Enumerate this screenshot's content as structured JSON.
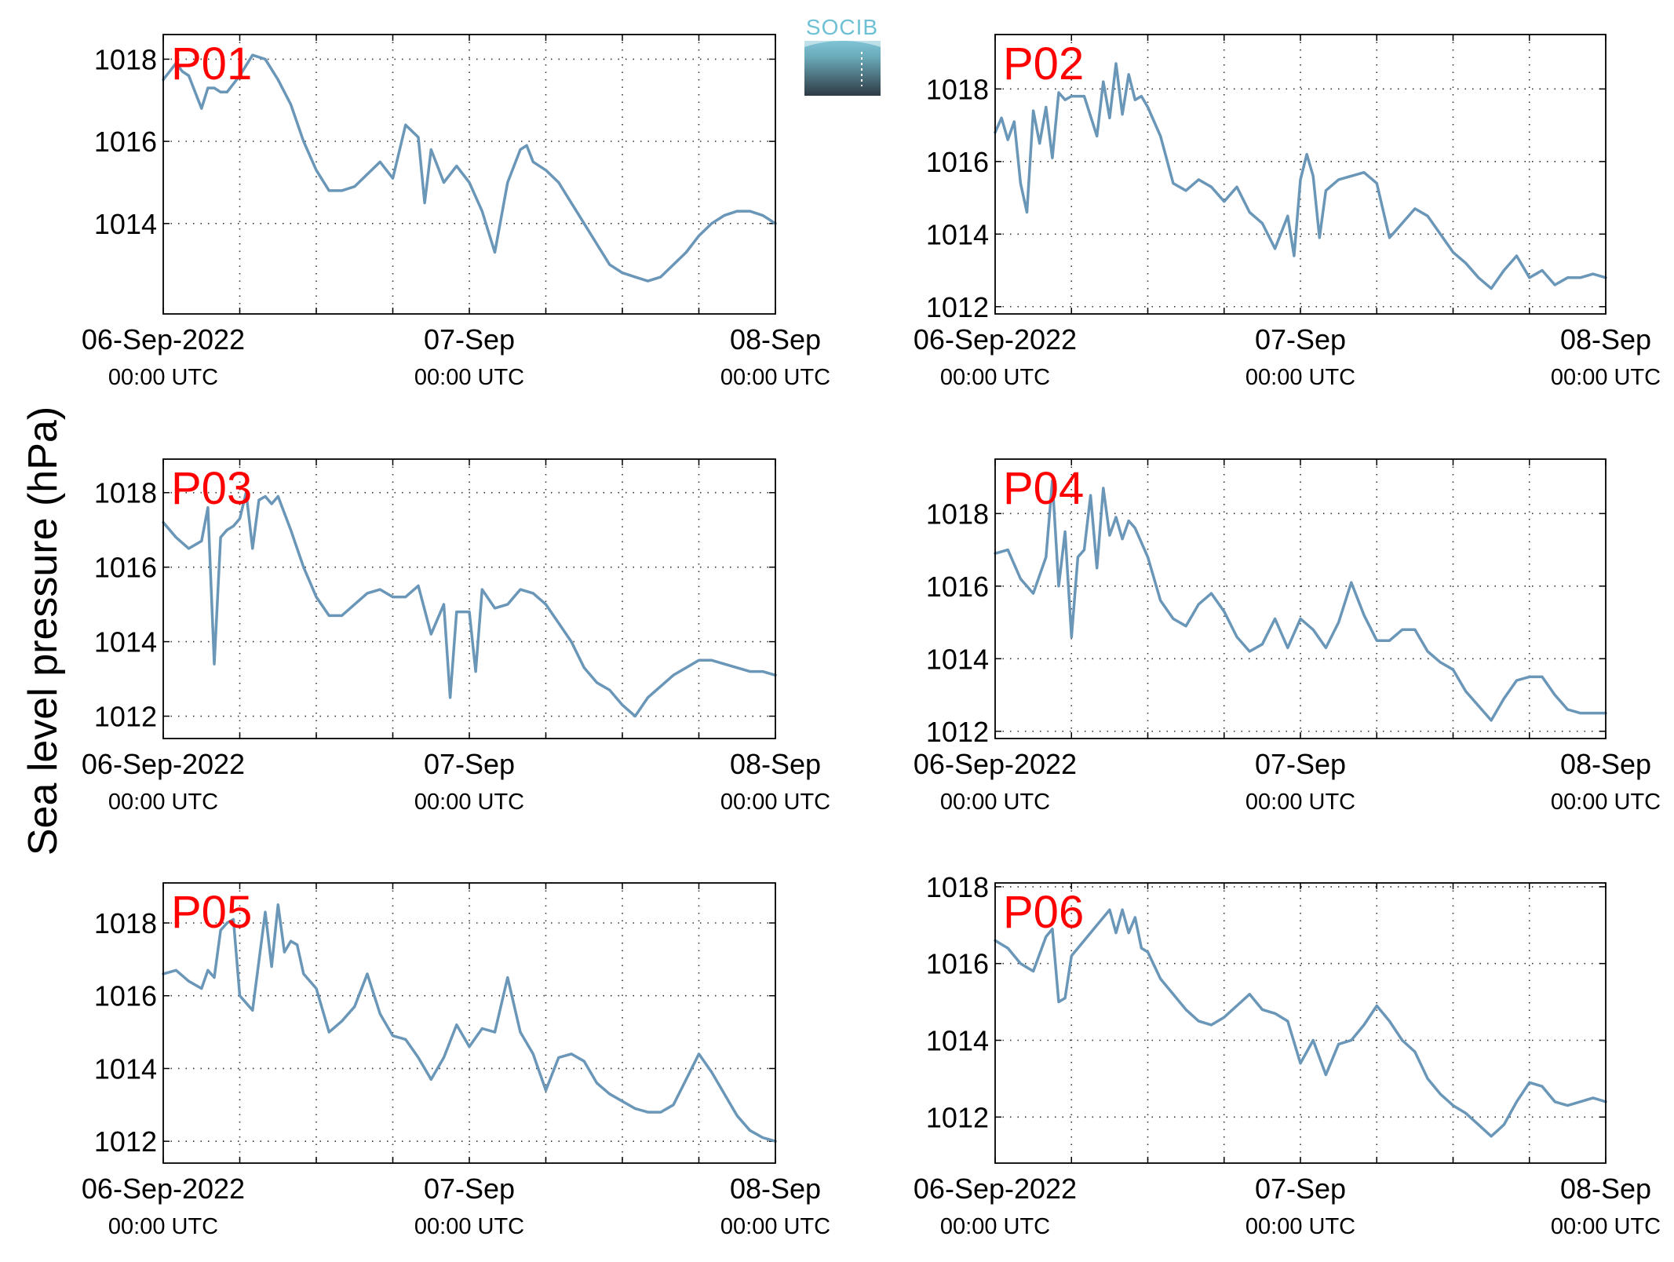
{
  "figure": {
    "ylabel": "Sea level pressure (hPa)",
    "logo_text": "SOCIB",
    "label_color": "#ff0000",
    "line_color": "#6a96b8"
  },
  "chart_data": [
    {
      "type": "line",
      "label": "P01",
      "x_tick_labels": [
        "06-Sep-2022",
        "07-Sep",
        "08-Sep"
      ],
      "x_tick_sublabels": [
        "00:00 UTC",
        "00:00 UTC",
        "00:00 UTC"
      ],
      "xlim_hours": [
        0,
        48
      ],
      "ylim": [
        1011.8,
        1018.6
      ],
      "yticks": [
        1014,
        1016,
        1018
      ],
      "grid": true,
      "series": [
        {
          "x": [
            0,
            1,
            1.5,
            2,
            2.5,
            3,
            3.5,
            4,
            4.5,
            5,
            6,
            7,
            8,
            9,
            10,
            11,
            12,
            13,
            14,
            15,
            16,
            17,
            18,
            19,
            20,
            20.5,
            21,
            21.5,
            22,
            23,
            24,
            25,
            26,
            27,
            28,
            28.5,
            29,
            30,
            31,
            32,
            33,
            34,
            35,
            36,
            37,
            38,
            39,
            40,
            41,
            42,
            43,
            44,
            45,
            46,
            47,
            48
          ],
          "y": [
            1017.5,
            1017.9,
            1017.7,
            1017.6,
            1017.2,
            1016.8,
            1017.3,
            1017.3,
            1017.2,
            1017.2,
            1017.6,
            1018.1,
            1018.0,
            1017.5,
            1016.9,
            1016.0,
            1015.3,
            1014.8,
            1014.8,
            1014.9,
            1015.2,
            1015.5,
            1015.1,
            1016.4,
            1016.1,
            1014.5,
            1015.8,
            1015.4,
            1015.0,
            1015.4,
            1015.0,
            1014.3,
            1013.3,
            1015.0,
            1015.8,
            1015.9,
            1015.5,
            1015.3,
            1015.0,
            1014.5,
            1014.0,
            1013.5,
            1013.0,
            1012.8,
            1012.7,
            1012.6,
            1012.7,
            1013.0,
            1013.3,
            1013.7,
            1014.0,
            1014.2,
            1014.3,
            1014.3,
            1014.2,
            1014.0
          ]
        }
      ]
    },
    {
      "type": "line",
      "label": "P02",
      "x_tick_labels": [
        "06-Sep-2022",
        "07-Sep",
        "08-Sep"
      ],
      "x_tick_sublabels": [
        "00:00 UTC",
        "00:00 UTC",
        "00:00 UTC"
      ],
      "xlim_hours": [
        0,
        48
      ],
      "ylim": [
        1011.8,
        1019.5
      ],
      "yticks": [
        1012,
        1014,
        1016,
        1018
      ],
      "grid": true,
      "series": [
        {
          "x": [
            0,
            0.5,
            1,
            1.5,
            2,
            2.5,
            3,
            3.5,
            4,
            4.5,
            5,
            5.5,
            6,
            7,
            8,
            8.5,
            9,
            9.5,
            10,
            10.5,
            11,
            11.5,
            12,
            13,
            14,
            15,
            16,
            17,
            18,
            19,
            20,
            21,
            22,
            23,
            23.5,
            24,
            24.5,
            25,
            25.5,
            26,
            27,
            28,
            29,
            30,
            31,
            32,
            33,
            34,
            35,
            36,
            37,
            38,
            39,
            40,
            41,
            42,
            43,
            44,
            45,
            46,
            47,
            48
          ],
          "y": [
            1016.8,
            1017.2,
            1016.6,
            1017.1,
            1015.4,
            1014.6,
            1017.4,
            1016.5,
            1017.5,
            1016.1,
            1017.9,
            1017.7,
            1017.8,
            1017.8,
            1016.7,
            1018.2,
            1017.2,
            1018.7,
            1017.3,
            1018.4,
            1017.7,
            1017.8,
            1017.5,
            1016.7,
            1015.4,
            1015.2,
            1015.5,
            1015.3,
            1014.9,
            1015.3,
            1014.6,
            1014.3,
            1013.6,
            1014.5,
            1013.4,
            1015.5,
            1016.2,
            1015.6,
            1013.9,
            1015.2,
            1015.5,
            1015.6,
            1015.7,
            1015.4,
            1013.9,
            1014.3,
            1014.7,
            1014.5,
            1014.0,
            1013.5,
            1013.2,
            1012.8,
            1012.5,
            1013.0,
            1013.4,
            1012.8,
            1013.0,
            1012.6,
            1012.8,
            1012.8,
            1012.9,
            1012.8
          ]
        }
      ]
    },
    {
      "type": "line",
      "label": "P03",
      "x_tick_labels": [
        "06-Sep-2022",
        "07-Sep",
        "08-Sep"
      ],
      "x_tick_sublabels": [
        "00:00 UTC",
        "00:00 UTC",
        "00:00 UTC"
      ],
      "xlim_hours": [
        0,
        48
      ],
      "ylim": [
        1011.4,
        1018.9
      ],
      "yticks": [
        1012,
        1014,
        1016,
        1018
      ],
      "grid": true,
      "series": [
        {
          "x": [
            0,
            1,
            2,
            3,
            3.5,
            4,
            4.5,
            5,
            5.5,
            6,
            6.5,
            7,
            7.5,
            8,
            8.5,
            9,
            10,
            11,
            12,
            13,
            14,
            15,
            16,
            17,
            18,
            19,
            20,
            21,
            22,
            22.5,
            23,
            24,
            24.5,
            25,
            26,
            27,
            28,
            29,
            30,
            31,
            32,
            33,
            34,
            35,
            36,
            37,
            38,
            39,
            40,
            41,
            42,
            43,
            44,
            45,
            46,
            47,
            48
          ],
          "y": [
            1017.2,
            1016.8,
            1016.5,
            1016.7,
            1017.6,
            1013.4,
            1016.8,
            1017.0,
            1017.1,
            1017.3,
            1018.0,
            1016.5,
            1017.8,
            1017.9,
            1017.7,
            1017.9,
            1017.0,
            1016.0,
            1015.2,
            1014.7,
            1014.7,
            1015.0,
            1015.3,
            1015.4,
            1015.2,
            1015.2,
            1015.5,
            1014.2,
            1015.0,
            1012.5,
            1014.8,
            1014.8,
            1013.2,
            1015.4,
            1014.9,
            1015.0,
            1015.4,
            1015.3,
            1015.0,
            1014.5,
            1014.0,
            1013.3,
            1012.9,
            1012.7,
            1012.3,
            1012.0,
            1012.5,
            1012.8,
            1013.1,
            1013.3,
            1013.5,
            1013.5,
            1013.4,
            1013.3,
            1013.2,
            1013.2,
            1013.1
          ]
        }
      ]
    },
    {
      "type": "line",
      "label": "P04",
      "x_tick_labels": [
        "06-Sep-2022",
        "07-Sep",
        "08-Sep"
      ],
      "x_tick_sublabels": [
        "00:00 UTC",
        "00:00 UTC",
        "00:00 UTC"
      ],
      "xlim_hours": [
        0,
        48
      ],
      "ylim": [
        1011.8,
        1019.5
      ],
      "yticks": [
        1012,
        1014,
        1016,
        1018
      ],
      "grid": true,
      "series": [
        {
          "x": [
            0,
            1,
            2,
            3,
            4,
            4.5,
            5,
            5.5,
            6,
            6.5,
            7,
            7.5,
            8,
            8.5,
            9,
            9.5,
            10,
            10.5,
            11,
            12,
            13,
            14,
            15,
            16,
            17,
            18,
            19,
            20,
            21,
            22,
            23,
            24,
            25,
            26,
            27,
            28,
            29,
            30,
            31,
            32,
            33,
            34,
            35,
            36,
            37,
            38,
            39,
            40,
            41,
            42,
            43,
            44,
            45,
            46,
            47,
            48
          ],
          "y": [
            1016.9,
            1017.0,
            1016.2,
            1015.8,
            1016.8,
            1018.9,
            1016.0,
            1017.5,
            1014.6,
            1016.8,
            1017.0,
            1018.5,
            1016.5,
            1018.7,
            1017.4,
            1017.9,
            1017.3,
            1017.8,
            1017.6,
            1016.8,
            1015.6,
            1015.1,
            1014.9,
            1015.5,
            1015.8,
            1015.3,
            1014.6,
            1014.2,
            1014.4,
            1015.1,
            1014.3,
            1015.1,
            1014.8,
            1014.3,
            1015.0,
            1016.1,
            1015.2,
            1014.5,
            1014.5,
            1014.8,
            1014.8,
            1014.2,
            1013.9,
            1013.7,
            1013.1,
            1012.7,
            1012.3,
            1012.9,
            1013.4,
            1013.5,
            1013.5,
            1013.0,
            1012.6,
            1012.5,
            1012.5,
            1012.5
          ]
        }
      ]
    },
    {
      "type": "line",
      "label": "P05",
      "x_tick_labels": [
        "06-Sep-2022",
        "07-Sep",
        "08-Sep"
      ],
      "x_tick_sublabels": [
        "00:00 UTC",
        "00:00 UTC",
        "00:00 UTC"
      ],
      "xlim_hours": [
        0,
        48
      ],
      "ylim": [
        1011.4,
        1019.1
      ],
      "yticks": [
        1012,
        1014,
        1016,
        1018
      ],
      "grid": true,
      "series": [
        {
          "x": [
            0,
            1,
            2,
            3,
            3.5,
            4,
            4.5,
            5,
            5.5,
            6,
            7,
            8,
            8.5,
            9,
            9.5,
            10,
            10.5,
            11,
            12,
            13,
            14,
            15,
            16,
            17,
            18,
            19,
            20,
            21,
            22,
            23,
            24,
            25,
            26,
            27,
            28,
            29,
            30,
            31,
            32,
            33,
            34,
            35,
            36,
            37,
            38,
            39,
            40,
            41,
            42,
            43,
            44,
            45,
            46,
            47,
            48
          ],
          "y": [
            1016.6,
            1016.7,
            1016.4,
            1016.2,
            1016.7,
            1016.5,
            1017.8,
            1018.0,
            1018.1,
            1016.0,
            1015.6,
            1018.3,
            1016.8,
            1018.5,
            1017.2,
            1017.5,
            1017.4,
            1016.6,
            1016.2,
            1015.0,
            1015.3,
            1015.7,
            1016.6,
            1015.5,
            1014.9,
            1014.8,
            1014.3,
            1013.7,
            1014.3,
            1015.2,
            1014.6,
            1015.1,
            1015.0,
            1016.5,
            1015.0,
            1014.4,
            1013.4,
            1014.3,
            1014.4,
            1014.2,
            1013.6,
            1013.3,
            1013.1,
            1012.9,
            1012.8,
            1012.8,
            1013.0,
            1013.7,
            1014.4,
            1013.9,
            1013.3,
            1012.7,
            1012.3,
            1012.1,
            1012.0
          ]
        }
      ]
    },
    {
      "type": "line",
      "label": "P06",
      "x_tick_labels": [
        "06-Sep-2022",
        "07-Sep",
        "08-Sep"
      ],
      "x_tick_sublabels": [
        "00:00 UTC",
        "00:00 UTC",
        "00:00 UTC"
      ],
      "xlim_hours": [
        0,
        48
      ],
      "ylim": [
        1010.8,
        1018.1
      ],
      "yticks": [
        1012,
        1014,
        1016,
        1018
      ],
      "grid": true,
      "series": [
        {
          "x": [
            0,
            1,
            2,
            3,
            4,
            4.5,
            5,
            5.5,
            6,
            7,
            8,
            9,
            9.5,
            10,
            10.5,
            11,
            11.5,
            12,
            13,
            14,
            15,
            16,
            17,
            18,
            19,
            20,
            21,
            22,
            23,
            24,
            25,
            26,
            27,
            28,
            29,
            30,
            31,
            32,
            33,
            34,
            35,
            36,
            37,
            38,
            39,
            40,
            41,
            42,
            43,
            44,
            45,
            46,
            47,
            48
          ],
          "y": [
            1016.6,
            1016.4,
            1016.0,
            1015.8,
            1016.7,
            1016.9,
            1015.0,
            1015.1,
            1016.2,
            1016.6,
            1017.0,
            1017.4,
            1016.8,
            1017.4,
            1016.8,
            1017.2,
            1016.4,
            1016.3,
            1015.6,
            1015.2,
            1014.8,
            1014.5,
            1014.4,
            1014.6,
            1014.9,
            1015.2,
            1014.8,
            1014.7,
            1014.5,
            1013.4,
            1014.0,
            1013.1,
            1013.9,
            1014.0,
            1014.4,
            1014.9,
            1014.5,
            1014.0,
            1013.7,
            1013.0,
            1012.6,
            1012.3,
            1012.1,
            1011.8,
            1011.5,
            1011.8,
            1012.4,
            1012.9,
            1012.8,
            1012.4,
            1012.3,
            1012.4,
            1012.5,
            1012.4
          ]
        }
      ]
    }
  ]
}
